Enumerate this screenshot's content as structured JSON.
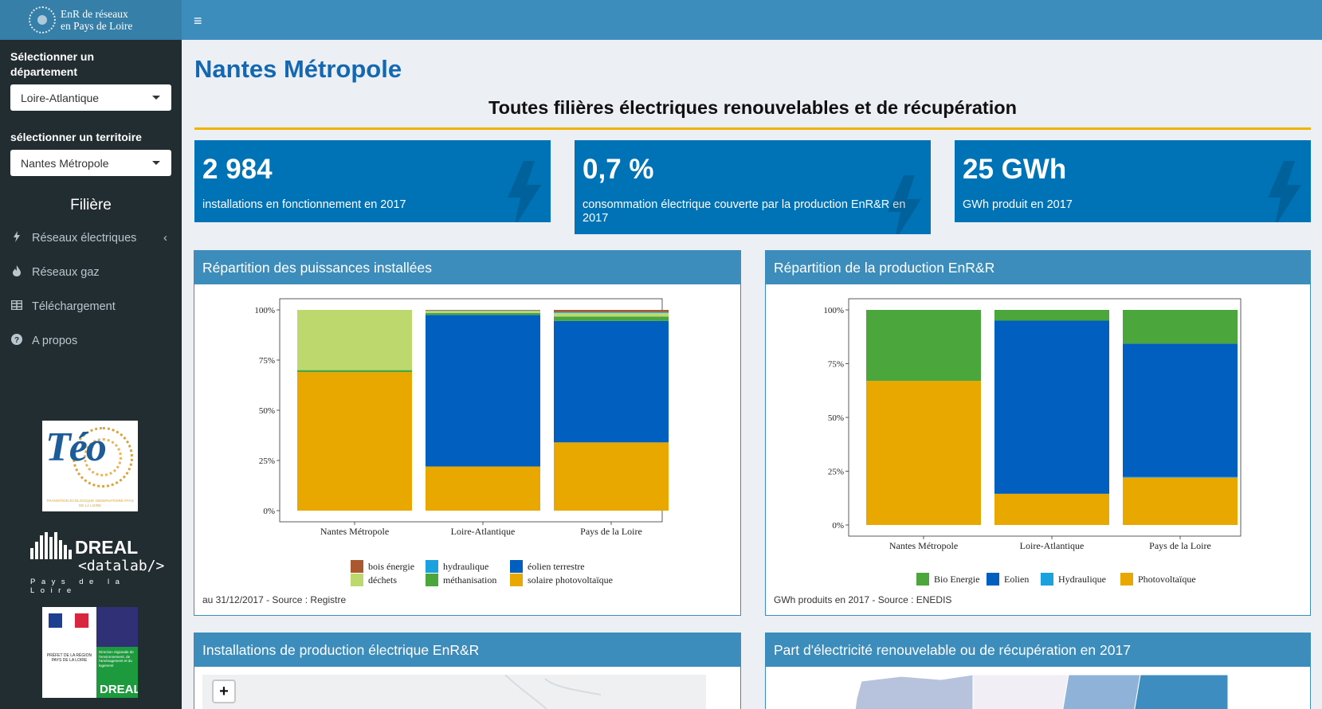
{
  "app": {
    "logo_line1": "EnR de réseaux",
    "logo_line2": "en Pays de Loire"
  },
  "sidebar": {
    "dept_label": "Sélectionner un département",
    "dept_value": "Loire-Atlantique",
    "terr_label": "sélectionner un territoire",
    "terr_value": "Nantes Métropole",
    "filiere_title": "Filière",
    "items": [
      {
        "label": "Réseaux électriques",
        "icon": "bolt-icon"
      },
      {
        "label": "Réseaux gaz",
        "icon": "flame-icon"
      },
      {
        "label": "Téléchargement",
        "icon": "table-icon"
      },
      {
        "label": "A propos",
        "icon": "question-circle-icon"
      }
    ],
    "partners": {
      "teo_word": "Téo",
      "teo_sub": "TRANSITION ÉCOLOGIQUE OBSERVATOIRE PAYS DE LA LOIRE",
      "dreal_word": "DREAL",
      "datalab": "<datalab/>",
      "region": "Pays de la Loire",
      "prefet_text": "PRÉFET DE LA RÉGION PAYS DE LA LOIRE",
      "prefet_right_text": "Direction régionale de l'environnement, de l'aménagement et du logement",
      "prefet_dreal": "DREAL"
    }
  },
  "header": {
    "menu_icon": "hamburger-icon"
  },
  "main": {
    "page_title": "Nantes Métropole",
    "section_title": "Toutes filières électriques renouvelables et de récupération",
    "kpis": [
      {
        "value": "2 984",
        "label": "installations en fonctionnement en 2017"
      },
      {
        "value": "0,7 %",
        "label": "consommation électrique couverte par la production EnR&R en 2017"
      },
      {
        "value": "25 GWh",
        "label": "GWh produit en 2017"
      }
    ],
    "box1": {
      "title": "Répartition des puissances installées",
      "footer": "au 31/12/2017 - Source : Registre"
    },
    "box2": {
      "title": "Répartition de la production EnR&R",
      "footer": "GWh produits en 2017 - Source : ENEDIS"
    },
    "box3": {
      "title": "Installations de production électrique EnR&R",
      "zoom_in": "+"
    },
    "box4": {
      "title": "Part d'électricité renouvelable ou de récupération en 2017"
    }
  },
  "colors": {
    "header": "#3c8dbc",
    "sidebar": "#222d32",
    "kpi": "#0073b7",
    "title": "#1468b2",
    "gold": "#f0b400"
  },
  "chart_data": [
    {
      "type": "bar",
      "stacked": "percent",
      "categories": [
        "Nantes Métropole",
        "Loire-Atlantique",
        "Pays de la Loire"
      ],
      "yticks": [
        "0%",
        "25%",
        "50%",
        "75%",
        "100%"
      ],
      "ylim": [
        0,
        100
      ],
      "series": [
        {
          "name": "solaire photovoltaïque",
          "color": "#e8a800",
          "values": [
            69,
            22,
            34
          ]
        },
        {
          "name": "éolien terrestre",
          "color": "#005fbf",
          "values": [
            0,
            75.5,
            60.5
          ]
        },
        {
          "name": "méthanisation",
          "color": "#4ba63b",
          "values": [
            1,
            1,
            2.2
          ]
        },
        {
          "name": "déchets",
          "color": "#bdd96e",
          "values": [
            30,
            1,
            1.8
          ]
        },
        {
          "name": "hydraulique",
          "color": "#1ba1de",
          "values": [
            0,
            0.2,
            0.5
          ]
        },
        {
          "name": "bois énergie",
          "color": "#a9582f",
          "values": [
            0,
            0.3,
            1
          ]
        }
      ],
      "legend_order": [
        "bois énergie",
        "hydraulique",
        "éolien terrestre",
        "déchets",
        "méthanisation",
        "solaire photovoltaïque"
      ]
    },
    {
      "type": "bar",
      "stacked": "percent",
      "categories": [
        "Nantes Métropole",
        "Loire-Atlantique",
        "Pays de la Loire"
      ],
      "yticks": [
        "0%",
        "25%",
        "50%",
        "75%",
        "100%"
      ],
      "ylim": [
        0,
        100
      ],
      "series": [
        {
          "name": "Photovoltaïque",
          "color": "#e8a800",
          "values": [
            67,
            14.5,
            22
          ]
        },
        {
          "name": "Hydraulique",
          "color": "#1ba1de",
          "values": [
            0,
            0,
            0.3
          ]
        },
        {
          "name": "Eolien",
          "color": "#005fbf",
          "values": [
            0,
            80.5,
            62
          ]
        },
        {
          "name": "Bio Energie",
          "color": "#4ba63b",
          "values": [
            33,
            5,
            15.7
          ]
        }
      ],
      "legend_order": [
        "Bio Energie",
        "Eolien",
        "Hydraulique",
        "Photovoltaïque"
      ]
    }
  ]
}
